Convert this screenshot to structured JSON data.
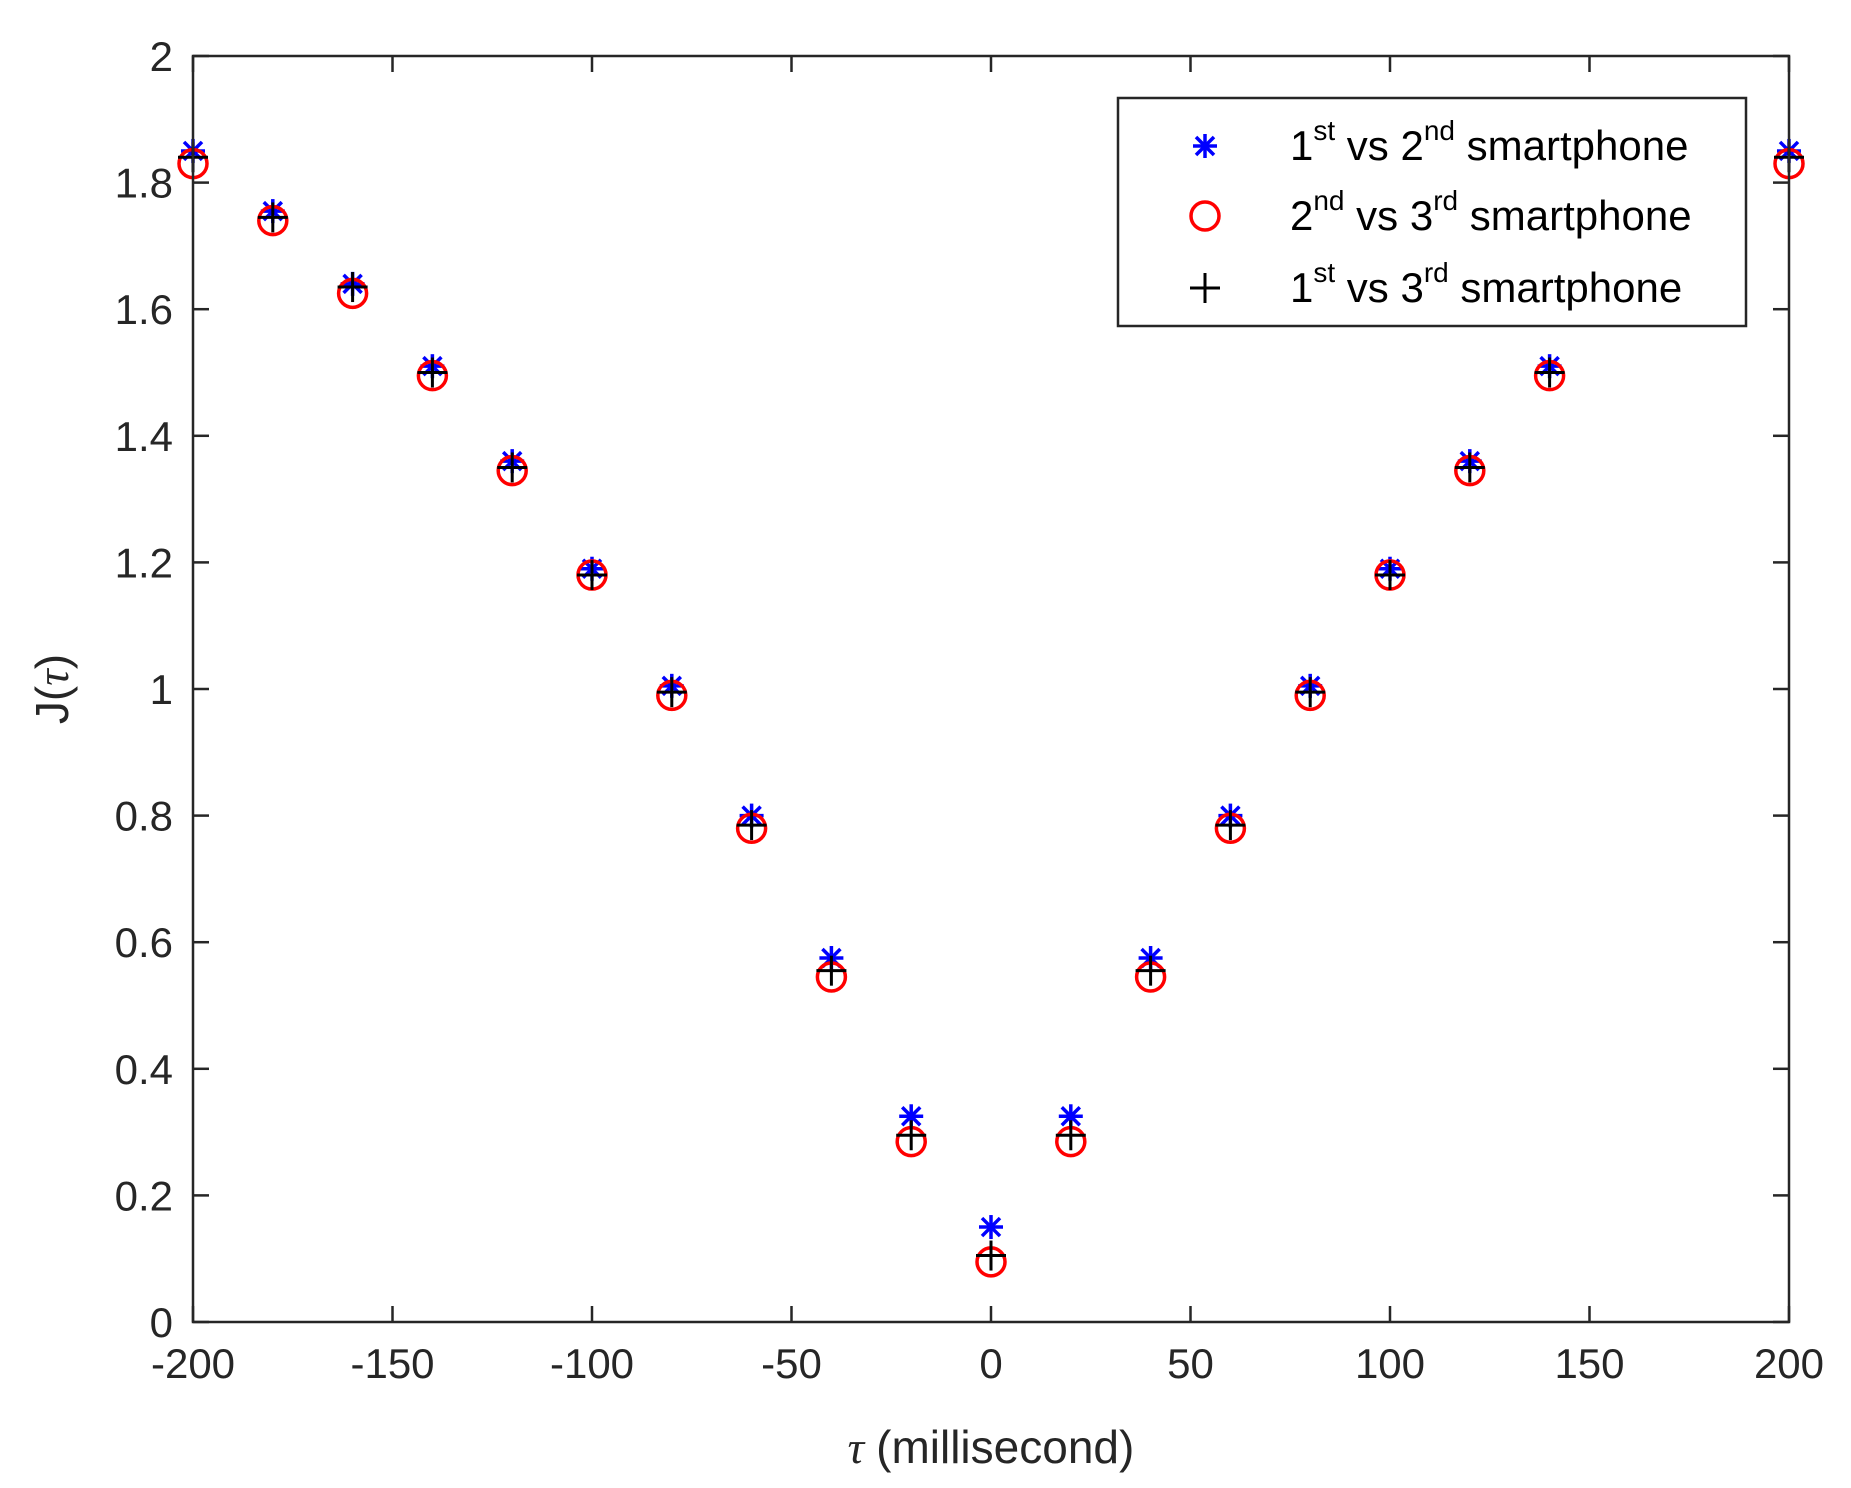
{
  "chart_data": {
    "type": "scatter",
    "xlabel_symbol": "τ",
    "xlabel_unit": "(millisecond)",
    "ylabel_prefix": "J(",
    "ylabel_symbol": "τ",
    "ylabel_suffix": ")",
    "xlim": [
      -200,
      200
    ],
    "ylim": [
      0,
      2
    ],
    "xticks": [
      -200,
      -150,
      -100,
      -50,
      0,
      50,
      100,
      150,
      200
    ],
    "yticks": [
      0,
      0.2,
      0.4,
      0.6,
      0.8,
      1,
      1.2,
      1.4,
      1.6,
      1.8,
      2
    ],
    "xtick_labels": [
      "-200",
      "-150",
      "-100",
      "-50",
      "0",
      "50",
      "100",
      "150",
      "200"
    ],
    "ytick_labels": [
      "0",
      "0.2",
      "0.4",
      "0.6",
      "0.8",
      "1",
      "1.2",
      "1.4",
      "1.6",
      "1.8",
      "2"
    ],
    "grid": false,
    "legend_position": "top-right",
    "x": [
      -200,
      -180,
      -160,
      -140,
      -120,
      -100,
      -80,
      -60,
      -40,
      -20,
      0,
      20,
      40,
      60,
      80,
      100,
      120,
      140,
      200
    ],
    "series": [
      {
        "marker": "asterisk",
        "color": "#0000ff",
        "legend_parts": [
          "1",
          "st",
          " vs 2",
          "nd",
          " smartphone"
        ],
        "values": [
          1.85,
          1.755,
          1.64,
          1.51,
          1.36,
          1.19,
          1.005,
          0.8,
          0.575,
          0.325,
          0.15,
          0.325,
          0.575,
          0.8,
          1.005,
          1.19,
          1.36,
          1.51,
          1.85
        ]
      },
      {
        "marker": "circle",
        "color": "#ff0000",
        "legend_parts": [
          "2",
          "nd",
          " vs 3",
          "rd",
          " smartphone"
        ],
        "values": [
          1.83,
          1.74,
          1.625,
          1.495,
          1.345,
          1.18,
          0.99,
          0.78,
          0.545,
          0.285,
          0.095,
          0.285,
          0.545,
          0.78,
          0.99,
          1.18,
          1.345,
          1.495,
          1.83
        ]
      },
      {
        "marker": "plus",
        "color": "#000000",
        "legend_parts": [
          "1",
          "st",
          " vs 3",
          "rd",
          " smartphone"
        ],
        "values": [
          1.84,
          1.745,
          1.635,
          1.5,
          1.35,
          1.18,
          0.995,
          0.785,
          0.555,
          0.295,
          0.105,
          0.295,
          0.555,
          0.785,
          0.995,
          1.18,
          1.35,
          1.5,
          1.84
        ]
      }
    ]
  }
}
